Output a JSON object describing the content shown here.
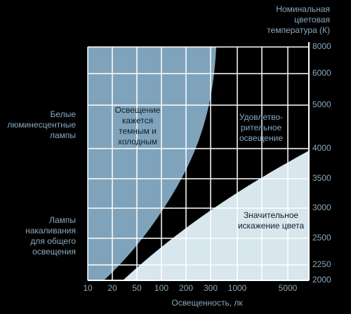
{
  "title": [
    "Номинальная",
    "цветовая",
    "температура (К)"
  ],
  "x_axis_label": "Освещенность, лк",
  "x_ticks": [
    "10",
    "20",
    "50",
    "100",
    "200",
    "300",
    "1000",
    "5000"
  ],
  "y_ticks": [
    "8000",
    "6000",
    "5000",
    "4000",
    "3500",
    "3000",
    "2500",
    "2250",
    "2000"
  ],
  "left_labels": {
    "fluorescent": [
      "Белые",
      "люминесцентные",
      "лампы"
    ],
    "incandescent": [
      "Лампы",
      "накаливания",
      "для общего",
      "освещения"
    ]
  },
  "regions": {
    "dark_cold": [
      "Освещение",
      "кажется",
      "темным и",
      "холодным"
    ],
    "satisfactory": [
      "Удовлетво-",
      "рительное",
      "освещение"
    ],
    "distortion": [
      "Значительное",
      "искажение цвета"
    ]
  }
}
